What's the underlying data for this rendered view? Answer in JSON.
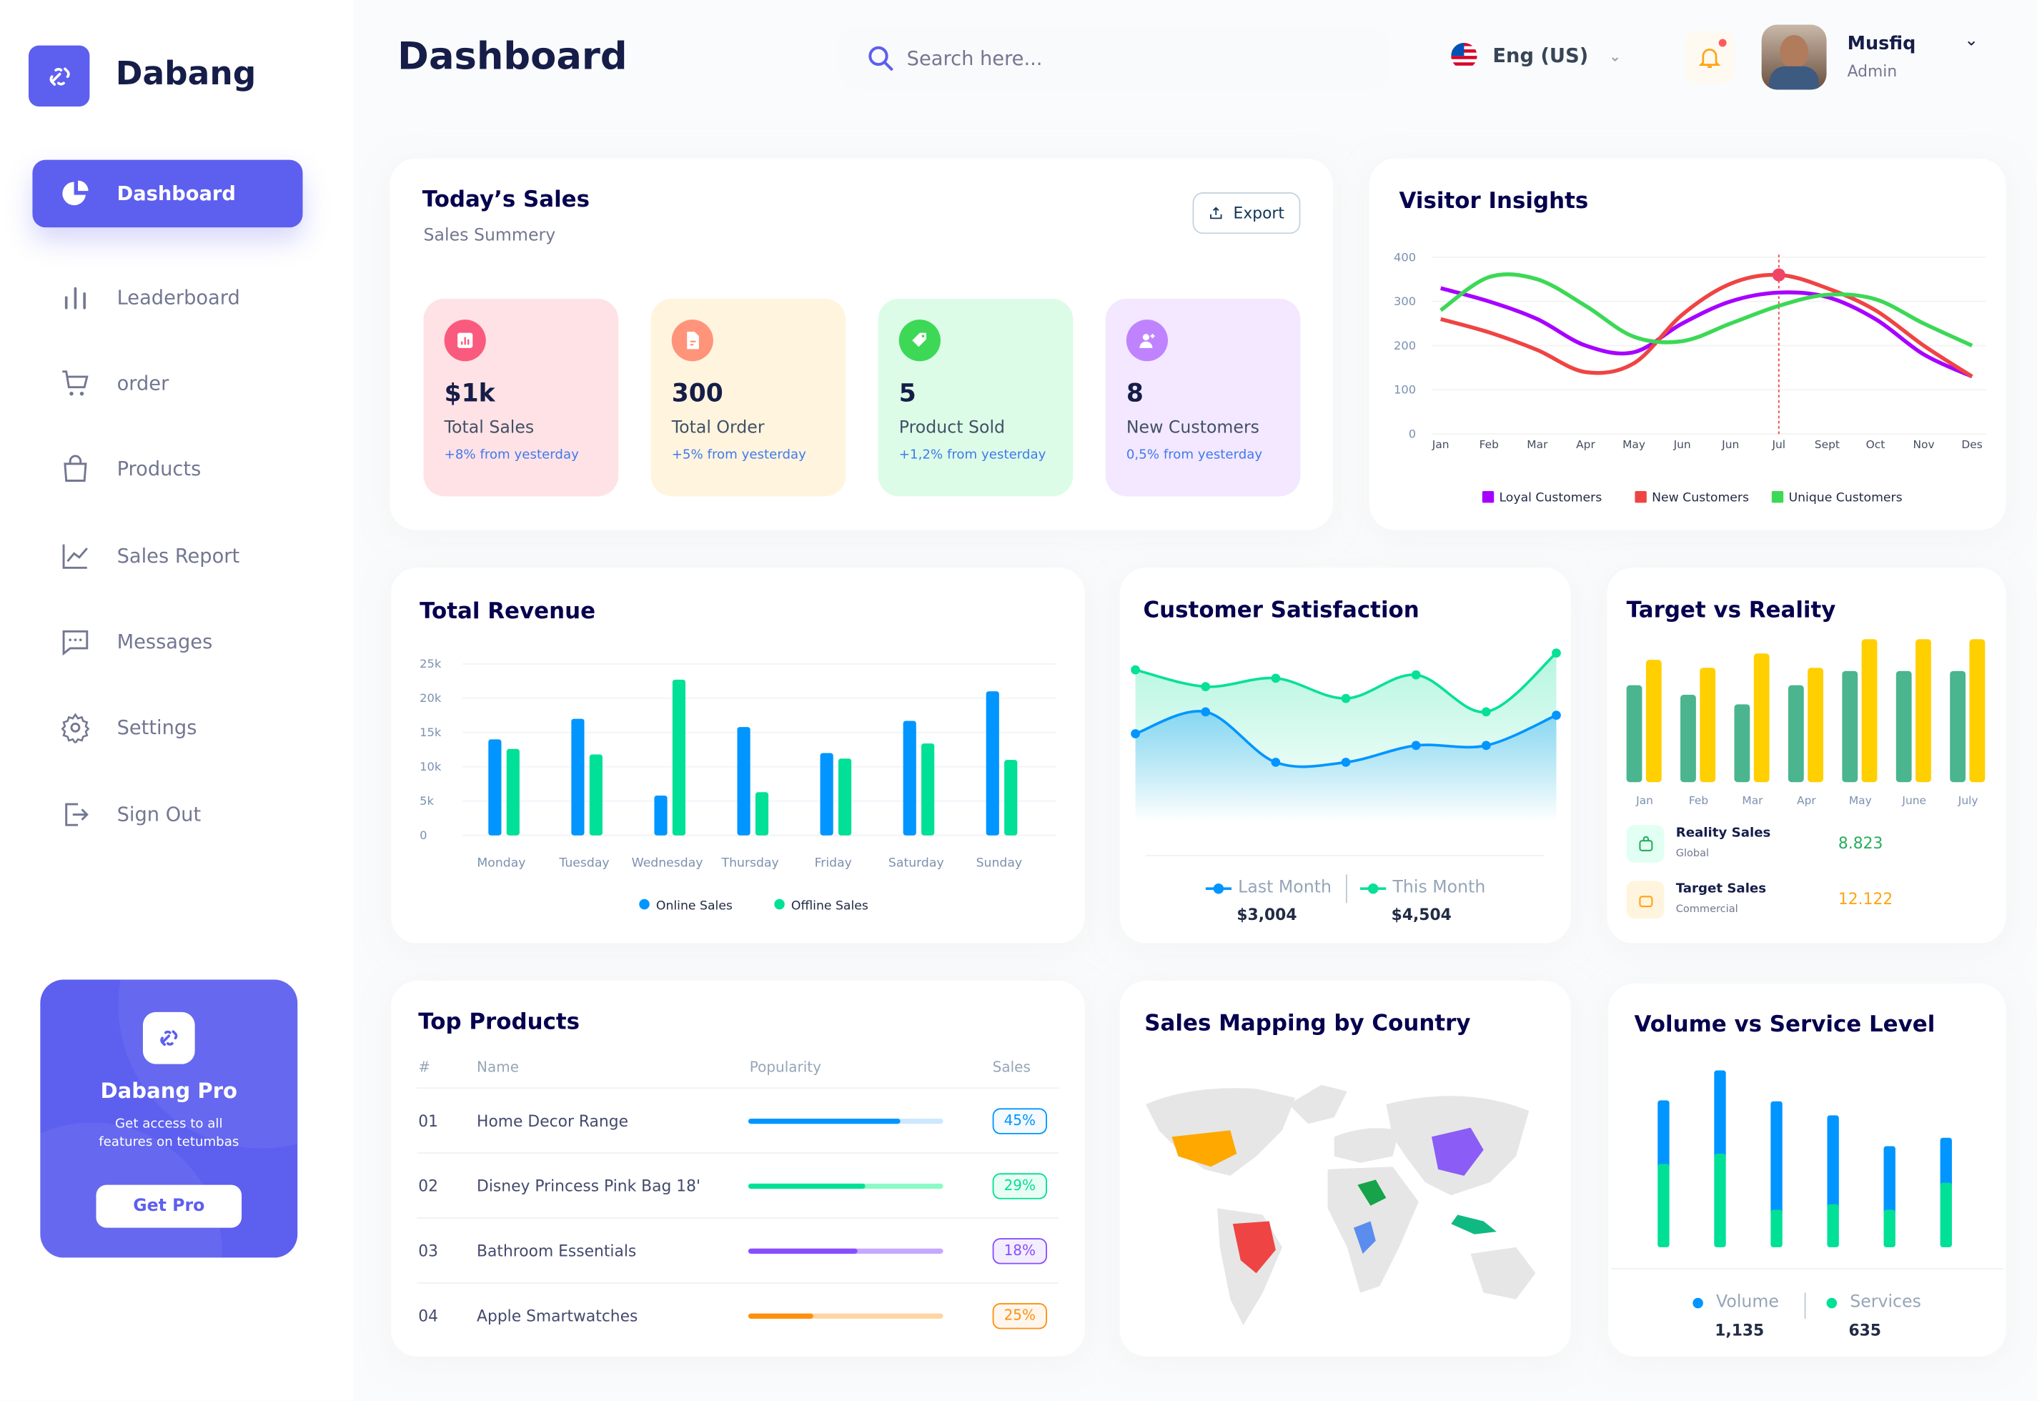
{
  "brand": {
    "name": "Dabang"
  },
  "sidebar": {
    "items": [
      {
        "label": "Dashboard",
        "icon": "pie-chart-icon",
        "active": true
      },
      {
        "label": "Leaderboard",
        "icon": "bar-chart-icon"
      },
      {
        "label": "order",
        "icon": "cart-icon"
      },
      {
        "label": "Products",
        "icon": "shopping-bag-icon"
      },
      {
        "label": "Sales Report",
        "icon": "line-chart-icon"
      },
      {
        "label": "Messages",
        "icon": "message-icon"
      },
      {
        "label": "Settings",
        "icon": "gear-icon"
      },
      {
        "label": "Sign Out",
        "icon": "sign-out-icon"
      }
    ],
    "promo": {
      "title": "Dabang Pro",
      "text": "Get access to all features on tetumbas",
      "button": "Get Pro"
    }
  },
  "header": {
    "title": "Dashboard",
    "search_placeholder": "Search here...",
    "language": "Eng (US)",
    "user": {
      "name": "Musfiq",
      "role": "Admin"
    }
  },
  "todays_sales": {
    "title": "Today’s Sales",
    "subtitle": "Sales Summery",
    "export": "Export",
    "stats": [
      {
        "value": "$1k",
        "label": "Total Sales",
        "delta": "+8% from yesterday",
        "bg": "#FFE2E5",
        "icon_bg": "#FA5A7D",
        "icon": "chart-icon"
      },
      {
        "value": "300",
        "label": "Total Order",
        "delta": "+5% from yesterday",
        "bg": "#FFF4DE",
        "icon_bg": "#FF947A",
        "icon": "document-icon"
      },
      {
        "value": "5",
        "label": "Product Sold",
        "delta": "+1,2% from yesterday",
        "bg": "#DCFCE7",
        "icon_bg": "#3CD856",
        "icon": "tag-icon"
      },
      {
        "value": "8",
        "label": "New Customers",
        "delta": "0,5% from yesterday",
        "bg": "#F3E8FF",
        "icon_bg": "#BF83FF",
        "icon": "add-user-icon"
      }
    ]
  },
  "visitor_insights": {
    "title": "Visitor Insights"
  },
  "total_revenue": {
    "title": "Total Revenue"
  },
  "customer_satisfaction": {
    "title": "Customer Satisfaction",
    "legend": [
      {
        "label": "Last Month",
        "value": "$3,004"
      },
      {
        "label": "This Month",
        "value": "$4,504"
      }
    ]
  },
  "target_vs_reality": {
    "title": "Target vs Reality",
    "rows": [
      {
        "label": "Reality Sales",
        "sub": "Global",
        "value": "8.823",
        "color": "#27AE60"
      },
      {
        "label": "Target Sales",
        "sub": "Commercial",
        "value": "12.122",
        "color": "#FFA412"
      }
    ]
  },
  "top_products": {
    "title": "Top Products",
    "columns": [
      "#",
      "Name",
      "Popularity",
      "Sales"
    ],
    "rows": [
      {
        "num": "01",
        "name": "Home Decor Range",
        "popularity": 0.78,
        "sales": "45%",
        "color": "#0095FF",
        "light": "#CDE7FF"
      },
      {
        "num": "02",
        "name": "Disney Princess Pink Bag 18'",
        "popularity": 0.6,
        "sales": "29%",
        "color": "#00E096",
        "light": "#8CFAC7"
      },
      {
        "num": "03",
        "name": "Bathroom Essentials",
        "popularity": 0.56,
        "sales": "18%",
        "color": "#884DFF",
        "light": "#C5A8FF"
      },
      {
        "num": "04",
        "name": "Apple Smartwatches",
        "popularity": 0.33,
        "sales": "25%",
        "color": "#FF8F0D",
        "light": "#FFD5A4"
      }
    ]
  },
  "sales_mapping": {
    "title": "Sales Mapping by Country",
    "highlight_colors": {
      "usa": "#FFA800",
      "brazil": "#EF4444",
      "saudi_arabia": "#16A34A",
      "congo": "#5B8DEF",
      "china": "#8B5CF6",
      "indonesia": "#10B981"
    }
  },
  "volume_service": {
    "title": "Volume vs Service Level",
    "legend": [
      {
        "label": "Volume",
        "value": "1,135"
      },
      {
        "label": "Services",
        "value": "635"
      }
    ]
  },
  "chart_data": [
    {
      "id": "visitor",
      "type": "line",
      "title": "Visitor Insights",
      "categories": [
        "Jan",
        "Feb",
        "Mar",
        "Apr",
        "May",
        "Jun",
        "Jun",
        "Jul",
        "Sept",
        "Oct",
        "Nov",
        "Des"
      ],
      "ylim": [
        0,
        400
      ],
      "yticks": [
        0,
        100,
        200,
        300,
        400
      ],
      "grid": true,
      "legend": "bottom",
      "highlight": {
        "series": "New Customers",
        "category_index": 7
      },
      "series": [
        {
          "name": "Loyal Customers",
          "color": "#A700FF",
          "values": [
            330,
            300,
            260,
            200,
            185,
            250,
            300,
            320,
            310,
            260,
            180,
            130
          ]
        },
        {
          "name": "New Customers",
          "color": "#EF4444",
          "values": [
            260,
            230,
            190,
            140,
            160,
            270,
            340,
            360,
            330,
            280,
            200,
            130
          ]
        },
        {
          "name": "Unique Customers",
          "color": "#3CD856",
          "values": [
            280,
            355,
            350,
            290,
            220,
            210,
            250,
            290,
            315,
            305,
            250,
            200
          ]
        }
      ]
    },
    {
      "id": "revenue",
      "type": "bar",
      "title": "Total Revenue",
      "categories": [
        "Monday",
        "Tuesday",
        "Wednesday",
        "Thursday",
        "Friday",
        "Saturday",
        "Sunday"
      ],
      "ylim": [
        0,
        25000
      ],
      "yticks": [
        "0",
        "5k",
        "10k",
        "15k",
        "20k",
        "25k"
      ],
      "grid": true,
      "legend": "bottom",
      "series": [
        {
          "name": "Online Sales",
          "color": "#0095FF",
          "values": [
            14000,
            17000,
            5800,
            15800,
            12000,
            16700,
            21000
          ]
        },
        {
          "name": "Offline Sales",
          "color": "#00E096",
          "values": [
            12600,
            11800,
            22700,
            6300,
            11200,
            13400,
            11000
          ]
        }
      ]
    },
    {
      "id": "satisfaction",
      "type": "area",
      "title": "Customer Satisfaction",
      "legend": "bottom",
      "series": [
        {
          "name": "Last Month",
          "color": "#0095FF",
          "values": [
            52,
            65,
            35,
            35,
            45,
            45,
            63
          ]
        },
        {
          "name": "This Month",
          "color": "#07E098",
          "values": [
            90,
            80,
            85,
            73,
            87,
            65,
            100
          ]
        }
      ]
    },
    {
      "id": "target",
      "type": "bar",
      "title": "Target vs Reality",
      "categories": [
        "Jan",
        "Feb",
        "Mar",
        "Apr",
        "May",
        "June",
        "July"
      ],
      "series": [
        {
          "name": "Reality Sales",
          "color": "#4AB58E",
          "values": [
            6.1,
            5.5,
            4.9,
            6.1,
            7.0,
            7.0,
            7.0
          ]
        },
        {
          "name": "Target Sales",
          "color": "#FFCF00",
          "values": [
            7.7,
            7.2,
            8.1,
            7.2,
            9.0,
            9.0,
            9.0
          ]
        }
      ]
    },
    {
      "id": "volume",
      "type": "stacked-bar",
      "title": "Volume vs Service Level",
      "legend": "bottom",
      "series": [
        {
          "name": "Services",
          "color": "#00E096",
          "values": [
            8.9,
            10,
            4,
            4.6,
            4,
            6.9
          ]
        },
        {
          "name": "Volume",
          "color": "#0095FF",
          "values": [
            6.8,
            8.9,
            11.6,
            9.5,
            6.8,
            4.8
          ]
        }
      ]
    }
  ]
}
